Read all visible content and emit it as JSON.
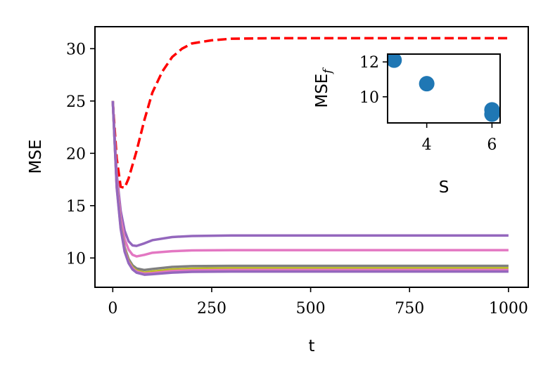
{
  "chart_data": [
    {
      "type": "line",
      "title": "",
      "xlabel": "t",
      "ylabel": "MSE",
      "xlim": [
        -45,
        1050
      ],
      "ylim": [
        7.2,
        32.1
      ],
      "grid": false,
      "legend": "none",
      "x_ticks": [
        0,
        250,
        500,
        750,
        1000
      ],
      "x_tick_labels": [
        "0",
        "250",
        "500",
        "750",
        "1000"
      ],
      "y_ticks": [
        10,
        15,
        20,
        25,
        30
      ],
      "y_tick_labels": [
        "10",
        "15",
        "20",
        "25",
        "30"
      ],
      "series": [
        {
          "style": "dashed",
          "color": "#ff0000",
          "x": [
            0,
            10,
            20,
            30,
            40,
            60,
            80,
            100,
            125,
            150,
            175,
            200,
            250,
            300,
            400,
            500,
            750,
            1000
          ],
          "values": [
            25.0,
            19.5,
            16.8,
            16.7,
            17.6,
            20.2,
            23.2,
            25.8,
            27.8,
            29.2,
            30.0,
            30.5,
            30.8,
            30.95,
            31.0,
            31.0,
            31.0,
            31.0
          ]
        },
        {
          "style": "solid",
          "color": "#9467bd",
          "x": [
            0,
            10,
            20,
            30,
            40,
            50,
            60,
            80,
            100,
            150,
            200,
            300,
            500,
            750,
            1000
          ],
          "values": [
            25.0,
            18.0,
            14.5,
            12.6,
            11.6,
            11.2,
            11.15,
            11.4,
            11.7,
            12.0,
            12.1,
            12.15,
            12.15,
            12.15,
            12.15
          ]
        },
        {
          "style": "solid",
          "color": "#e377c2",
          "x": [
            0,
            10,
            20,
            30,
            40,
            50,
            60,
            80,
            100,
            150,
            200,
            300,
            500,
            750,
            1000
          ],
          "values": [
            25.0,
            17.6,
            13.8,
            11.8,
            10.8,
            10.3,
            10.15,
            10.3,
            10.5,
            10.65,
            10.72,
            10.75,
            10.75,
            10.75,
            10.75
          ]
        },
        {
          "style": "solid",
          "color": "#7f7f7f",
          "x": [
            0,
            10,
            20,
            30,
            40,
            50,
            60,
            80,
            100,
            150,
            200,
            300,
            500,
            750,
            1000
          ],
          "values": [
            25.0,
            17.0,
            13.1,
            11.0,
            9.9,
            9.3,
            9.0,
            8.85,
            8.95,
            9.15,
            9.22,
            9.25,
            9.25,
            9.25,
            9.25
          ]
        },
        {
          "style": "solid",
          "color": "#bcbd22",
          "x": [
            0,
            10,
            20,
            30,
            40,
            50,
            60,
            80,
            100,
            150,
            200,
            300,
            500,
            750,
            1000
          ],
          "values": [
            25.0,
            16.9,
            13.0,
            10.8,
            9.7,
            9.1,
            8.8,
            8.6,
            8.7,
            8.9,
            8.98,
            9.02,
            9.02,
            9.02,
            9.02
          ]
        },
        {
          "style": "solid",
          "color": "#e377c2",
          "x": [
            0,
            10,
            20,
            30,
            40,
            50,
            60,
            80,
            100,
            150,
            200,
            300,
            500,
            750,
            1000
          ],
          "values": [
            25.0,
            16.8,
            12.9,
            10.7,
            9.6,
            9.0,
            8.7,
            8.5,
            8.55,
            8.75,
            8.82,
            8.85,
            8.85,
            8.85,
            8.85
          ]
        },
        {
          "style": "solid",
          "color": "#9467bd",
          "x": [
            0,
            10,
            20,
            30,
            40,
            50,
            60,
            80,
            100,
            150,
            200,
            300,
            500,
            750,
            1000
          ],
          "values": [
            25.0,
            16.7,
            12.8,
            10.6,
            9.5,
            8.9,
            8.6,
            8.4,
            8.45,
            8.6,
            8.68,
            8.7,
            8.7,
            8.7,
            8.7
          ]
        }
      ]
    },
    {
      "type": "scatter",
      "title": "",
      "xlabel": "S",
      "ylabel": "MSE",
      "ylabel_subscript": "f",
      "xlim": [
        2.8,
        6.25
      ],
      "ylim": [
        8.5,
        12.45
      ],
      "x_ticks": [
        4,
        6
      ],
      "x_tick_labels": [
        "4",
        "6"
      ],
      "y_ticks": [
        10,
        12
      ],
      "y_tick_labels": [
        "10",
        "12"
      ],
      "color": "#1f77b4",
      "x": [
        3,
        4,
        6,
        6
      ],
      "values": [
        12.1,
        10.75,
        9.25,
        9.0
      ]
    }
  ]
}
